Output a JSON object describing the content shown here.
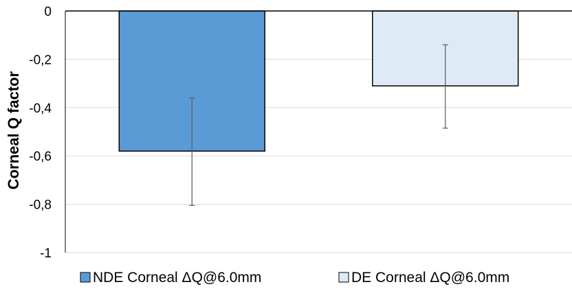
{
  "chart_data": {
    "type": "bar",
    "categories": [
      "NDE Corneal ΔQ@6.0mm",
      "DE Corneal ΔQ@6.0mm"
    ],
    "values": [
      -0.58,
      -0.31
    ],
    "error_high": [
      -0.36,
      -0.14
    ],
    "error_low": [
      -0.805,
      -0.485
    ],
    "colors": [
      "#5b9bd5",
      "#deebf7"
    ],
    "edge_color": "#000000",
    "ylabel": "Corneal Q factor",
    "ylim": [
      -1,
      0
    ],
    "yticks": [
      0,
      -0.2,
      -0.4,
      -0.6,
      -0.8,
      -1
    ],
    "ytick_labels": [
      "0",
      "-0,2",
      "-0,4",
      "-0,6",
      "-0,8",
      "-1"
    ],
    "grid": true,
    "legend": {
      "position": "bottom",
      "entries": [
        "NDE Corneal ΔQ@6.0mm",
        "DE Corneal ΔQ@6.0mm"
      ]
    }
  }
}
